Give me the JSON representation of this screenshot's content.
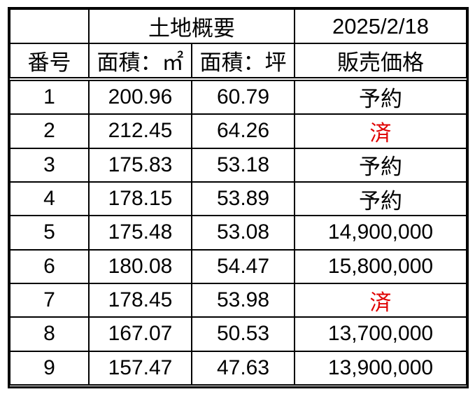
{
  "header": {
    "group_label": "土地概要",
    "date": "2025/2/18"
  },
  "columns": {
    "number": "番号",
    "area_m2": "面積：㎡",
    "area_tsubo": "面積：坪",
    "price": "販売価格"
  },
  "rows": [
    {
      "no": "1",
      "area_m2": "200.96",
      "area_tsubo": "60.79",
      "price": "予約",
      "status": "reserved"
    },
    {
      "no": "2",
      "area_m2": "212.45",
      "area_tsubo": "64.26",
      "price": "済",
      "status": "sold"
    },
    {
      "no": "3",
      "area_m2": "175.83",
      "area_tsubo": "53.18",
      "price": "予約",
      "status": "reserved"
    },
    {
      "no": "4",
      "area_m2": "178.15",
      "area_tsubo": "53.89",
      "price": "予約",
      "status": "reserved"
    },
    {
      "no": "5",
      "area_m2": "175.48",
      "area_tsubo": "53.08",
      "price": "14,900,000",
      "status": "price"
    },
    {
      "no": "6",
      "area_m2": "180.08",
      "area_tsubo": "54.47",
      "price": "15,800,000",
      "status": "price"
    },
    {
      "no": "7",
      "area_m2": "178.45",
      "area_tsubo": "53.98",
      "price": "済",
      "status": "sold"
    },
    {
      "no": "8",
      "area_m2": "167.07",
      "area_tsubo": "50.53",
      "price": "13,700,000",
      "status": "price"
    },
    {
      "no": "9",
      "area_m2": "157.47",
      "area_tsubo": "47.63",
      "price": "13,900,000",
      "status": "price"
    }
  ],
  "colors": {
    "sold": "#e00000",
    "text": "#000000",
    "border": "#000000"
  }
}
